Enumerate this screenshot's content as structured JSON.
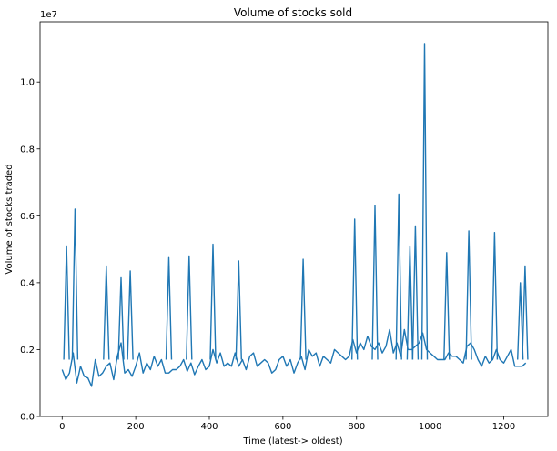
{
  "chart_data": {
    "type": "line",
    "title": "Volume of stocks sold",
    "xlabel": "Time (latest-> oldest)",
    "ylabel": "Volume of stocks traded",
    "offset_text": "1e7",
    "xlim": [
      -60,
      1320
    ],
    "ylim": [
      0,
      11800000
    ],
    "x_ticks": [
      0,
      200,
      400,
      600,
      800,
      1000,
      1200
    ],
    "x_tick_labels": [
      "0",
      "200",
      "400",
      "600",
      "800",
      "1000",
      "1200"
    ],
    "y_ticks": [
      0,
      2000000,
      4000000,
      6000000,
      8000000,
      10000000
    ],
    "y_tick_labels": [
      "0.0",
      "0.2",
      "0.4",
      "0.6",
      "0.8",
      "1.0"
    ],
    "grid": false,
    "series": [
      {
        "color": "#1f77b4",
        "x_start": 0,
        "x_step": 10,
        "values": [
          1400000,
          1100000,
          1300000,
          1900000,
          1000000,
          1500000,
          1200000,
          1150000,
          900000,
          1700000,
          1200000,
          1300000,
          1500000,
          1600000,
          1100000,
          1800000,
          2200000,
          1300000,
          1400000,
          1200000,
          1500000,
          1900000,
          1300000,
          1600000,
          1400000,
          1800000,
          1500000,
          1700000,
          1300000,
          1300000,
          1400000,
          1400000,
          1500000,
          1700000,
          1350000,
          1600000,
          1250000,
          1500000,
          1700000,
          1400000,
          1500000,
          2000000,
          1600000,
          1900000,
          1500000,
          1600000,
          1500000,
          1900000,
          1500000,
          1700000,
          1400000,
          1800000,
          1900000,
          1500000,
          1600000,
          1700000,
          1600000,
          1300000,
          1400000,
          1700000,
          1800000,
          1500000,
          1700000,
          1300000,
          1600000,
          1800000,
          1400000,
          2000000,
          1800000,
          1900000,
          1500000,
          1800000,
          1700000,
          1600000,
          2000000,
          1900000,
          1800000,
          1700000,
          1800000,
          2300000,
          1900000,
          2200000,
          2000000,
          2400000,
          2100000,
          2000000,
          2200000,
          1900000,
          2100000,
          2600000,
          1900000,
          2200000,
          1800000,
          2600000,
          2000000,
          2000000,
          2100000,
          2200000,
          2500000,
          2000000,
          1900000,
          1800000,
          1700000,
          1700000,
          1700000,
          1900000,
          1800000,
          1800000,
          1700000,
          1600000,
          2100000,
          2200000,
          2000000,
          1700000,
          1500000,
          1800000,
          1600000,
          1700000,
          2000000,
          1700000,
          1600000,
          1800000,
          2000000,
          1500000,
          1500000,
          1500000,
          1600000
        ]
      }
    ],
    "peaks": [
      {
        "x": 12,
        "y": 5100000
      },
      {
        "x": 35,
        "y": 6200000
      },
      {
        "x": 120,
        "y": 4500000
      },
      {
        "x": 160,
        "y": 4150000
      },
      {
        "x": 185,
        "y": 4350000
      },
      {
        "x": 290,
        "y": 4750000
      },
      {
        "x": 345,
        "y": 4800000
      },
      {
        "x": 410,
        "y": 5150000
      },
      {
        "x": 480,
        "y": 4650000
      },
      {
        "x": 655,
        "y": 4700000
      },
      {
        "x": 795,
        "y": 5900000
      },
      {
        "x": 850,
        "y": 6300000
      },
      {
        "x": 915,
        "y": 6650000
      },
      {
        "x": 945,
        "y": 5100000
      },
      {
        "x": 960,
        "y": 5700000
      },
      {
        "x": 985,
        "y": 11150000
      },
      {
        "x": 1045,
        "y": 4900000
      },
      {
        "x": 1105,
        "y": 5550000
      },
      {
        "x": 1175,
        "y": 5500000
      },
      {
        "x": 1245,
        "y": 4000000
      },
      {
        "x": 1258,
        "y": 4500000
      }
    ]
  }
}
